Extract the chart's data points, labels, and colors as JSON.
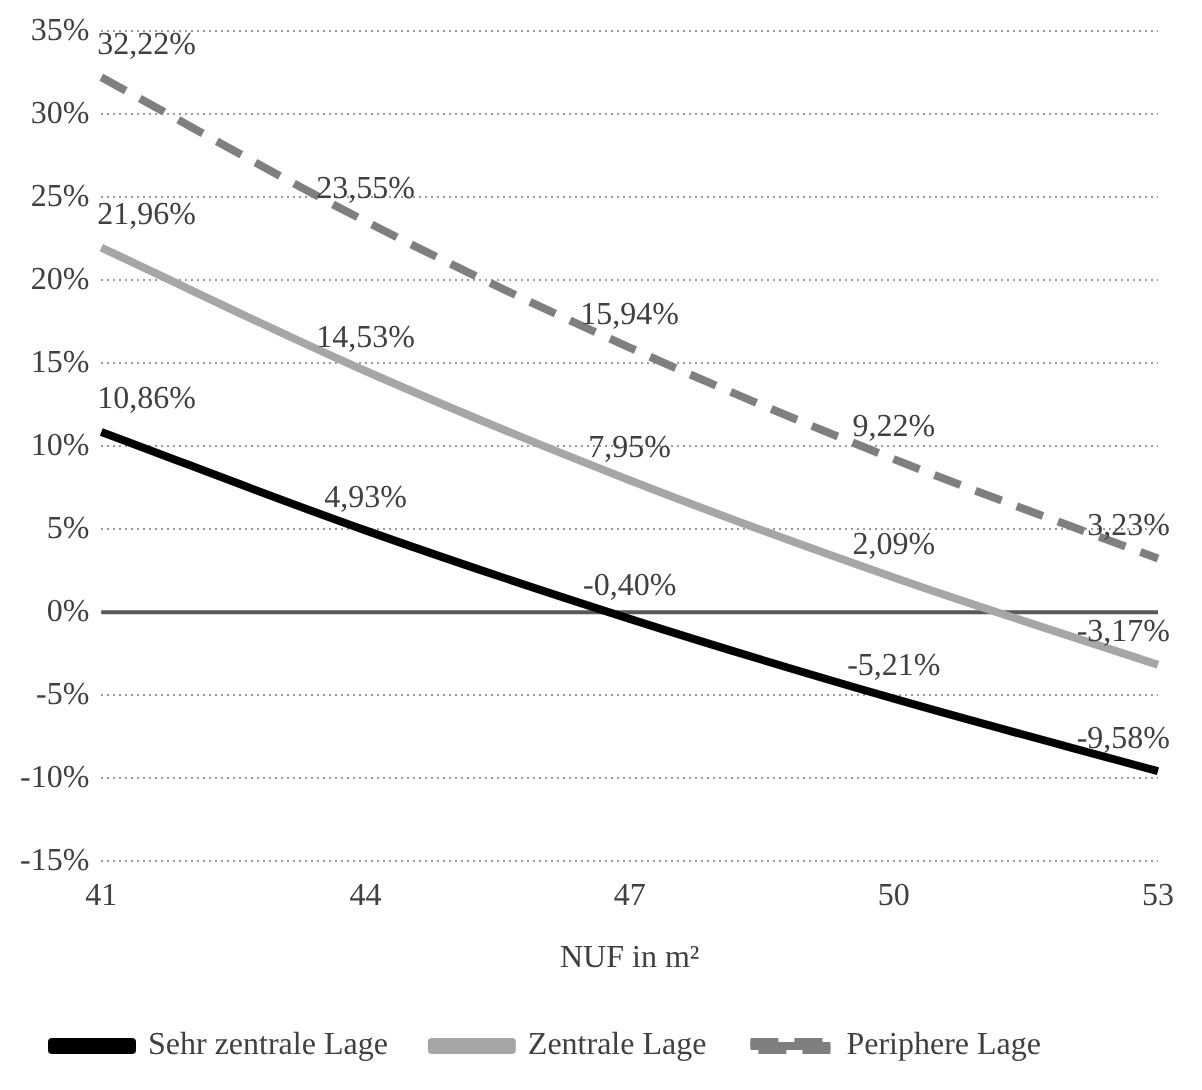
{
  "chart_data": {
    "type": "line",
    "xlabel": "NUF in m²",
    "categories": [
      "41",
      "44",
      "47",
      "50",
      "53"
    ],
    "ylim": [
      -15,
      35
    ],
    "yticks": [
      {
        "value": -15,
        "label": "-15%"
      },
      {
        "value": -10,
        "label": "-10%"
      },
      {
        "value": -5,
        "label": "-5%"
      },
      {
        "value": 0,
        "label": "0%"
      },
      {
        "value": 5,
        "label": "5%"
      },
      {
        "value": 10,
        "label": "10%"
      },
      {
        "value": 15,
        "label": "15%"
      },
      {
        "value": 20,
        "label": "20%"
      },
      {
        "value": 25,
        "label": "25%"
      },
      {
        "value": 30,
        "label": "30%"
      },
      {
        "value": 35,
        "label": "35%"
      }
    ],
    "grid": "y",
    "legend": "bottom",
    "marker": "none",
    "ref_lines": [
      {
        "axis": "y",
        "value": 0,
        "color": "#595959"
      }
    ],
    "series": [
      {
        "name": "Sehr zentrale Lage",
        "color": "#000000",
        "line_style": "solid",
        "values": [
          10.86,
          4.93,
          -0.4,
          -5.21,
          -9.58
        ],
        "value_labels": [
          "10,86%",
          "4,93%",
          "-0,40%",
          "-5,21%",
          "-9,58%"
        ]
      },
      {
        "name": "Zentrale Lage",
        "color": "#a6a6a6",
        "line_style": "solid",
        "values": [
          21.96,
          14.53,
          7.95,
          2.09,
          -3.17
        ],
        "value_labels": [
          "21,96%",
          "14,53%",
          "7,95%",
          "2,09%",
          "-3,17%"
        ]
      },
      {
        "name": "Periphere Lage",
        "color": "#7f7f7f",
        "line_style": "dashed",
        "values": [
          32.22,
          23.55,
          15.94,
          9.22,
          3.23
        ],
        "value_labels": [
          "32,22%",
          "23,55%",
          "15,94%",
          "9,22%",
          "3,23%"
        ]
      }
    ]
  }
}
